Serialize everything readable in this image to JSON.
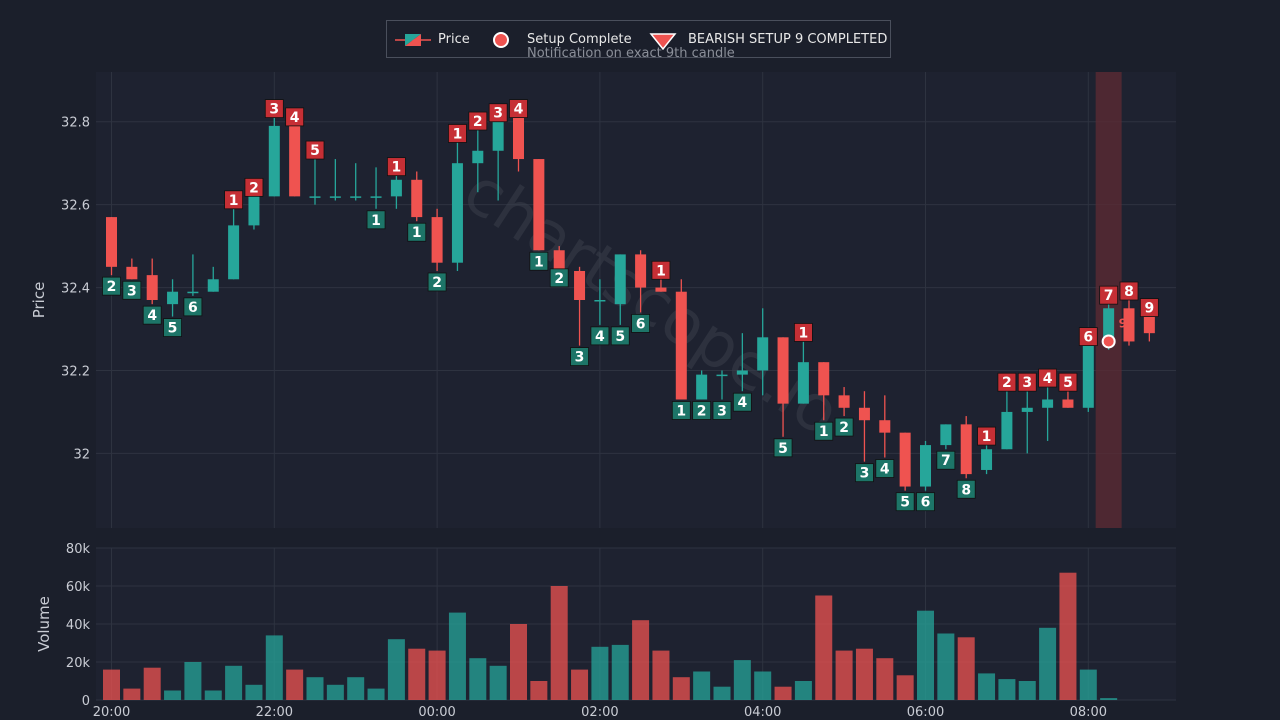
{
  "colors": {
    "background": "#1b1f2b",
    "grid": "#2e3340",
    "bull": "#26a69a",
    "bear": "#ef5350",
    "bull_label_bg": "#1d7568",
    "bear_label_bg": "#c62f35",
    "text": "#c9ccd4",
    "highlight_band": "#5a2a33"
  },
  "legend": {
    "items": [
      {
        "label": "Price",
        "icon": "candlestick-icon"
      },
      {
        "label": "Setup Complete",
        "icon": "circle-marker-icon"
      },
      {
        "label": "BEARISH SETUP 9 COMPLETED",
        "icon": "down-triangle-icon"
      }
    ],
    "subtitle": "Notification on exact 9th candle"
  },
  "watermark": "chartscope.io",
  "chart_data": [
    {
      "type": "candlestick",
      "ylabel": "Price",
      "ylim": [
        31.82,
        32.92
      ],
      "yticks": [
        32,
        32.2,
        32.4,
        32.6,
        32.8
      ],
      "ytick_labels": [
        "32",
        "32.2",
        "32.4",
        "32.6",
        "32.8"
      ],
      "xlim": [
        -0.5,
        48.8
      ],
      "xticks": [
        0,
        8,
        16,
        24,
        32,
        40,
        48
      ],
      "xtick_labels": [
        "20:00",
        "22:00",
        "00:00",
        "02:00",
        "04:00",
        "06:00",
        "08:00"
      ],
      "highlight_index": 49,
      "setup_complete_marker": {
        "index": 49,
        "price": 32.27,
        "count": 9,
        "label": "9"
      },
      "candles": [
        {
          "o": 32.57,
          "h": 32.57,
          "l": 32.43,
          "c": 32.45,
          "count": "2",
          "side": "bull"
        },
        {
          "o": 32.45,
          "h": 32.47,
          "l": 32.42,
          "c": 32.42,
          "count": "3",
          "side": "bull"
        },
        {
          "o": 32.43,
          "h": 32.47,
          "l": 32.36,
          "c": 32.37,
          "count": "4",
          "side": "bull"
        },
        {
          "o": 32.36,
          "h": 32.42,
          "l": 32.33,
          "c": 32.39,
          "count": "5",
          "side": "bull"
        },
        {
          "o": 32.39,
          "h": 32.48,
          "l": 32.38,
          "c": 32.39,
          "count": "6",
          "side": "bull"
        },
        {
          "o": 32.39,
          "h": 32.45,
          "l": 32.39,
          "c": 32.42,
          "count": "",
          "side": ""
        },
        {
          "o": 32.42,
          "h": 32.59,
          "l": 32.42,
          "c": 32.55,
          "count": "1",
          "side": "bear"
        },
        {
          "o": 32.55,
          "h": 32.62,
          "l": 32.54,
          "c": 32.62,
          "count": "2",
          "side": "bear"
        },
        {
          "o": 32.62,
          "h": 32.81,
          "l": 32.62,
          "c": 32.79,
          "count": "3",
          "side": "bear"
        },
        {
          "o": 32.79,
          "h": 32.79,
          "l": 32.62,
          "c": 32.62,
          "count": "4",
          "side": "bear"
        },
        {
          "o": 32.62,
          "h": 32.71,
          "l": 32.6,
          "c": 32.62,
          "count": "5",
          "side": "bear"
        },
        {
          "o": 32.62,
          "h": 32.71,
          "l": 32.61,
          "c": 32.62,
          "count": "",
          "side": ""
        },
        {
          "o": 32.62,
          "h": 32.7,
          "l": 32.61,
          "c": 32.62,
          "count": "",
          "side": ""
        },
        {
          "o": 32.62,
          "h": 32.69,
          "l": 32.59,
          "c": 32.62,
          "count": "1",
          "side": "bull"
        },
        {
          "o": 32.62,
          "h": 32.67,
          "l": 32.59,
          "c": 32.66,
          "count": "1",
          "side": "bear"
        },
        {
          "o": 32.66,
          "h": 32.68,
          "l": 32.56,
          "c": 32.57,
          "count": "1",
          "side": "bull"
        },
        {
          "o": 32.57,
          "h": 32.59,
          "l": 32.44,
          "c": 32.46,
          "count": "2",
          "side": "bull"
        },
        {
          "o": 32.46,
          "h": 32.75,
          "l": 32.44,
          "c": 32.7,
          "count": "1",
          "side": "bear"
        },
        {
          "o": 32.7,
          "h": 32.78,
          "l": 32.63,
          "c": 32.73,
          "count": "2",
          "side": "bear"
        },
        {
          "o": 32.73,
          "h": 32.8,
          "l": 32.61,
          "c": 32.81,
          "count": "3",
          "side": "bear"
        },
        {
          "o": 32.81,
          "h": 32.81,
          "l": 32.68,
          "c": 32.71,
          "count": "4",
          "side": "bear"
        },
        {
          "o": 32.71,
          "h": 32.71,
          "l": 32.49,
          "c": 32.49,
          "count": "1",
          "side": "bull"
        },
        {
          "o": 32.49,
          "h": 32.5,
          "l": 32.45,
          "c": 32.44,
          "count": "2",
          "side": "bull"
        },
        {
          "o": 32.44,
          "h": 32.45,
          "l": 32.26,
          "c": 32.37,
          "count": "3",
          "side": "bull"
        },
        {
          "o": 32.37,
          "h": 32.42,
          "l": 32.31,
          "c": 32.37,
          "count": "4",
          "side": "bull"
        },
        {
          "o": 32.36,
          "h": 32.48,
          "l": 32.31,
          "c": 32.48,
          "count": "5",
          "side": "bull"
        },
        {
          "o": 32.48,
          "h": 32.49,
          "l": 32.34,
          "c": 32.4,
          "count": "6",
          "side": "bull"
        },
        {
          "o": 32.4,
          "h": 32.42,
          "l": 32.39,
          "c": 32.39,
          "count": "1",
          "side": "bear"
        },
        {
          "o": 32.39,
          "h": 32.42,
          "l": 32.13,
          "c": 32.13,
          "count": "1",
          "side": "bull"
        },
        {
          "o": 32.13,
          "h": 32.2,
          "l": 32.13,
          "c": 32.19,
          "count": "2",
          "side": "bull"
        },
        {
          "o": 32.19,
          "h": 32.2,
          "l": 32.13,
          "c": 32.19,
          "count": "3",
          "side": "bull"
        },
        {
          "o": 32.19,
          "h": 32.29,
          "l": 32.15,
          "c": 32.2,
          "count": "4",
          "side": "bull"
        },
        {
          "o": 32.2,
          "h": 32.35,
          "l": 32.14,
          "c": 32.28,
          "count": "",
          "side": ""
        },
        {
          "o": 32.28,
          "h": 32.28,
          "l": 32.04,
          "c": 32.12,
          "count": "5",
          "side": "bull"
        },
        {
          "o": 32.12,
          "h": 32.27,
          "l": 32.12,
          "c": 32.22,
          "count": "1",
          "side": "bear"
        },
        {
          "o": 32.22,
          "h": 32.22,
          "l": 32.08,
          "c": 32.14,
          "count": "1",
          "side": "bull"
        },
        {
          "o": 32.14,
          "h": 32.16,
          "l": 32.09,
          "c": 32.11,
          "count": "2",
          "side": "bull"
        },
        {
          "o": 32.11,
          "h": 32.15,
          "l": 31.98,
          "c": 32.08,
          "count": "3",
          "side": "bull"
        },
        {
          "o": 32.08,
          "h": 32.14,
          "l": 31.99,
          "c": 32.05,
          "count": "4",
          "side": "bull"
        },
        {
          "o": 32.05,
          "h": 32.05,
          "l": 31.91,
          "c": 31.92,
          "count": "5",
          "side": "bull"
        },
        {
          "o": 31.92,
          "h": 32.03,
          "l": 31.91,
          "c": 32.02,
          "count": "6",
          "side": "bull"
        },
        {
          "o": 32.02,
          "h": 32.07,
          "l": 32.01,
          "c": 32.07,
          "count": "7",
          "side": "bull"
        },
        {
          "o": 32.07,
          "h": 32.09,
          "l": 31.94,
          "c": 31.95,
          "count": "8",
          "side": "bull"
        },
        {
          "o": 31.96,
          "h": 32.02,
          "l": 31.95,
          "c": 32.01,
          "count": "1",
          "side": "bear"
        },
        {
          "o": 32.01,
          "h": 32.15,
          "l": 32.01,
          "c": 32.1,
          "count": "2",
          "side": "bear"
        },
        {
          "o": 32.1,
          "h": 32.15,
          "l": 32.0,
          "c": 32.11,
          "count": "3",
          "side": "bear"
        },
        {
          "o": 32.11,
          "h": 32.16,
          "l": 32.03,
          "c": 32.13,
          "count": "4",
          "side": "bear"
        },
        {
          "o": 32.13,
          "h": 32.15,
          "l": 32.11,
          "c": 32.11,
          "count": "5",
          "side": "bear"
        },
        {
          "o": 32.11,
          "h": 32.26,
          "l": 32.1,
          "c": 32.26,
          "count": "6",
          "side": "bear"
        },
        {
          "o": 32.26,
          "h": 32.36,
          "l": 32.25,
          "c": 32.35,
          "count": "7",
          "side": "bear"
        },
        {
          "o": 32.35,
          "h": 32.37,
          "l": 32.26,
          "c": 32.27,
          "count": "8",
          "side": "bear"
        },
        {
          "o": 32.33,
          "h": 32.33,
          "l": 32.27,
          "c": 32.29,
          "count": "9",
          "side": "bear"
        }
      ]
    },
    {
      "type": "bar",
      "ylabel": "Volume",
      "ylim": [
        0,
        80000
      ],
      "yticks": [
        0,
        20000,
        40000,
        60000,
        80000
      ],
      "ytick_labels": [
        "0",
        "20k",
        "40k",
        "60k",
        "80k"
      ],
      "values": [
        16000,
        6000,
        17000,
        5000,
        20000,
        5000,
        18000,
        8000,
        34000,
        16000,
        12000,
        8000,
        12000,
        6000,
        32000,
        27000,
        26000,
        46000,
        22000,
        18000,
        40000,
        10000,
        60000,
        16000,
        28000,
        29000,
        42000,
        26000,
        12000,
        15000,
        7000,
        21000,
        15000,
        7000,
        10000,
        55000,
        26000,
        27000,
        22000,
        13000,
        47000,
        35000,
        33000,
        14000,
        11000,
        10000,
        38000,
        67000,
        16000,
        1000
      ]
    }
  ]
}
